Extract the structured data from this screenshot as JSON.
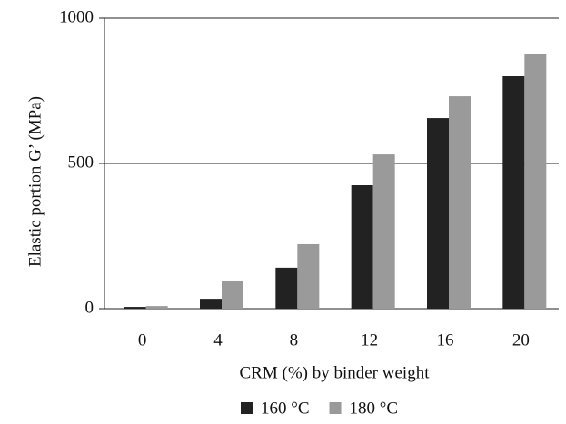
{
  "chart_data": {
    "type": "bar",
    "x_label": "CRM (%) by binder weight",
    "y_label": "Elastic portion G’ (MPa)",
    "categories": [
      "0",
      "4",
      "8",
      "12",
      "16",
      "20"
    ],
    "series": [
      {
        "name": "160 °C",
        "color": "#222222",
        "values": [
          6,
          34,
          141,
          425,
          656,
          800
        ]
      },
      {
        "name": "180 °C",
        "color": "#9a9a9a",
        "values": [
          9,
          97,
          222,
          531,
          731,
          878
        ]
      }
    ],
    "ylim": [
      0,
      1000
    ],
    "yticks": [
      0,
      500,
      1000
    ],
    "grid": true,
    "legend": "bottom"
  }
}
